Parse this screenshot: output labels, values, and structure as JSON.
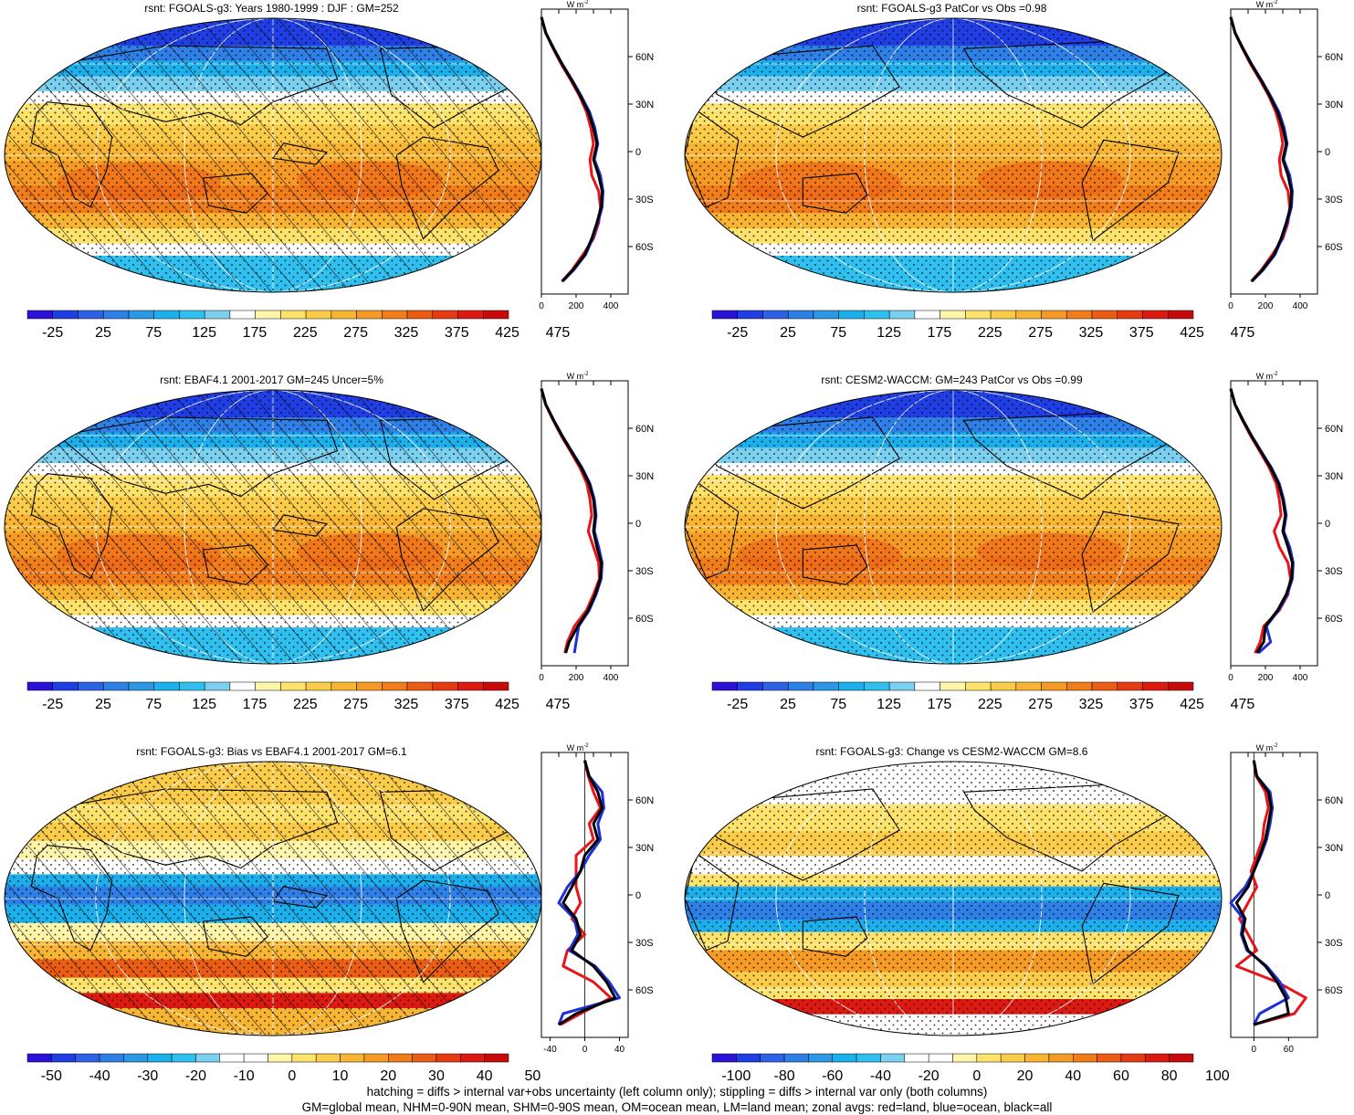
{
  "footer": {
    "line1": "hatching = diffs > internal var+obs uncertainty (left column only); stippling = diffs > internal var only (both columns)",
    "line2": "GM=global mean, NHM=0-90N mean, SHM=0-90S mean, OM=ocean mean, LM=land mean; zonal avgs: red=land, blue=ocean, black=all"
  },
  "colors": {
    "land": "#e8141a",
    "ocean": "#1f2fd8",
    "all": "#000000",
    "palette": [
      "#2a12d6",
      "#1f3ee3",
      "#2d62e6",
      "#2f80e6",
      "#2a98e3",
      "#1bb0ec",
      "#30c0f0",
      "#7cd0ef",
      "#ffffff",
      "#fff5a8",
      "#fde26b",
      "#fbcc4a",
      "#f8b534",
      "#f59a25",
      "#f07d1a",
      "#eb5d14",
      "#e53a12",
      "#dd1a12",
      "#c80a0a"
    ],
    "palette_diff": [
      "#2a12d6",
      "#1f3ee3",
      "#2d62e6",
      "#2f80e6",
      "#2a98e3",
      "#1bb0ec",
      "#30c0f0",
      "#7cd0ef",
      "#ffffff",
      "#ffffff",
      "#fff5a8",
      "#fde26b",
      "#fbcc4a",
      "#f8b534",
      "#f59a25",
      "#f07d1a",
      "#eb5d14",
      "#e53a12",
      "#dd1a12",
      "#c80a0a"
    ]
  },
  "zonal_units": "W m",
  "zonal_units_exp": "-2",
  "lat_ticks": [
    "60N",
    "30N",
    "0",
    "30S",
    "60S"
  ],
  "panels": [
    {
      "id": "p1",
      "title": "rsnt: FGOALS-g3: Years 1980-1999 : DJF : GM=252",
      "kind": "abs",
      "hatch": true,
      "cbar_labels": [
        "-25",
        "25",
        "75",
        "125",
        "175",
        "225",
        "275",
        "325",
        "375",
        "425",
        "475"
      ],
      "zonal_xticks": [
        "0",
        "200",
        "400"
      ],
      "zonal_xrange": [
        0,
        500
      ],
      "zonal": {
        "lat": [
          85,
          75,
          65,
          55,
          45,
          35,
          25,
          15,
          5,
          -5,
          -15,
          -25,
          -35,
          -45,
          -55,
          -65,
          -75,
          -82
        ],
        "all": [
          0,
          25,
          70,
          120,
          175,
          225,
          270,
          300,
          320,
          300,
          330,
          350,
          345,
          320,
          290,
          250,
          180,
          120
        ],
        "ocean": [
          0,
          25,
          72,
          122,
          178,
          230,
          278,
          308,
          325,
          305,
          340,
          355,
          350,
          325,
          295,
          255,
          185,
          122
        ],
        "land": [
          0,
          24,
          68,
          116,
          170,
          220,
          260,
          285,
          300,
          280,
          290,
          330,
          340,
          330,
          300,
          240,
          175,
          118
        ]
      }
    },
    {
      "id": "p2",
      "title": "rsnt: FGOALS-g3 PatCor vs Obs =0.98",
      "kind": "abs",
      "hatch": false,
      "cbar_labels": [
        "-25",
        "25",
        "75",
        "125",
        "175",
        "225",
        "275",
        "325",
        "375",
        "425",
        "475"
      ],
      "zonal_xticks": [
        "0",
        "200",
        "400"
      ],
      "zonal_xrange": [
        0,
        500
      ],
      "zonal": {
        "lat": [
          85,
          75,
          65,
          55,
          45,
          35,
          25,
          15,
          5,
          -5,
          -15,
          -25,
          -35,
          -45,
          -55,
          -65,
          -75,
          -82
        ],
        "all": [
          0,
          25,
          70,
          120,
          175,
          225,
          270,
          300,
          320,
          300,
          330,
          350,
          345,
          320,
          290,
          250,
          180,
          120
        ],
        "ocean": [
          0,
          25,
          72,
          122,
          178,
          230,
          278,
          308,
          325,
          305,
          340,
          355,
          350,
          325,
          295,
          255,
          185,
          122
        ],
        "land": [
          0,
          24,
          68,
          116,
          170,
          220,
          260,
          285,
          300,
          280,
          290,
          330,
          340,
          330,
          300,
          240,
          175,
          118
        ]
      }
    },
    {
      "id": "p3",
      "title": "rsnt: EBAF4.1 2001-2017 GM=245 Uncer=5%",
      "kind": "abs",
      "hatch": true,
      "cbar_labels": [
        "-25",
        "25",
        "75",
        "125",
        "175",
        "225",
        "275",
        "325",
        "375",
        "425",
        "475"
      ],
      "zonal_xticks": [
        "0",
        "200",
        "400"
      ],
      "zonal_xrange": [
        0,
        500
      ],
      "zonal": {
        "lat": [
          85,
          75,
          65,
          55,
          45,
          35,
          25,
          15,
          5,
          -5,
          -15,
          -25,
          -35,
          -45,
          -55,
          -65,
          -75,
          -82
        ],
        "all": [
          0,
          25,
          70,
          120,
          175,
          230,
          275,
          300,
          310,
          300,
          320,
          345,
          340,
          310,
          270,
          210,
          160,
          140
        ],
        "ocean": [
          0,
          25,
          72,
          122,
          178,
          235,
          280,
          305,
          315,
          305,
          330,
          350,
          345,
          315,
          275,
          215,
          200,
          190
        ],
        "land": [
          0,
          24,
          68,
          116,
          170,
          222,
          262,
          280,
          290,
          270,
          300,
          330,
          335,
          300,
          260,
          190,
          150,
          135
        ]
      }
    },
    {
      "id": "p4",
      "title": "rsnt: CESM2-WACCM: GM=243 PatCor vs Obs =0.99",
      "kind": "abs",
      "hatch": false,
      "cbar_labels": [
        "-25",
        "25",
        "75",
        "125",
        "175",
        "225",
        "275",
        "325",
        "375",
        "425",
        "475"
      ],
      "zonal_xticks": [
        "0",
        "200",
        "400"
      ],
      "zonal_xrange": [
        0,
        500
      ],
      "zonal": {
        "lat": [
          85,
          75,
          65,
          55,
          45,
          35,
          25,
          15,
          5,
          -5,
          -15,
          -25,
          -35,
          -45,
          -55,
          -65,
          -75,
          -82
        ],
        "all": [
          0,
          25,
          70,
          120,
          175,
          230,
          275,
          300,
          315,
          300,
          330,
          355,
          350,
          320,
          270,
          200,
          190,
          150
        ],
        "ocean": [
          0,
          25,
          72,
          122,
          178,
          235,
          280,
          305,
          320,
          305,
          340,
          360,
          355,
          325,
          275,
          205,
          230,
          160
        ],
        "land": [
          0,
          24,
          68,
          116,
          170,
          222,
          262,
          280,
          290,
          250,
          280,
          330,
          345,
          330,
          280,
          190,
          170,
          140
        ]
      }
    },
    {
      "id": "p5",
      "title": "rsnt: FGOALS-g3: Bias vs EBAF4.1 2001-2017 GM=6.1",
      "kind": "diff1",
      "hatch": true,
      "cbar_labels": [
        "-50",
        "-40",
        "-30",
        "-20",
        "-10",
        "0",
        "10",
        "20",
        "30",
        "40",
        "50"
      ],
      "zonal_xticks": [
        "-40",
        "0",
        "40"
      ],
      "zonal_xrange": [
        -50,
        50
      ],
      "zonal": {
        "lat": [
          85,
          75,
          65,
          55,
          45,
          35,
          25,
          15,
          5,
          -5,
          -15,
          -25,
          -35,
          -45,
          -55,
          -65,
          -75,
          -82
        ],
        "all": [
          0,
          5,
          15,
          20,
          10,
          15,
          0,
          -5,
          -15,
          -25,
          -10,
          -5,
          -15,
          10,
          25,
          35,
          -10,
          -30
        ],
        "ocean": [
          0,
          5,
          20,
          22,
          15,
          18,
          5,
          -5,
          -20,
          -30,
          -12,
          -8,
          -18,
          12,
          28,
          40,
          -25,
          -30
        ],
        "land": [
          0,
          4,
          10,
          18,
          5,
          10,
          -10,
          -10,
          -10,
          -5,
          -15,
          0,
          -20,
          -25,
          10,
          30,
          -5,
          -28
        ]
      }
    },
    {
      "id": "p6",
      "title": "rsnt: FGOALS-g3: Change vs CESM2-WACCM GM=8.6",
      "kind": "diff2",
      "hatch": false,
      "cbar_labels": [
        "-100",
        "-80",
        "-60",
        "-40",
        "-20",
        "0",
        "20",
        "40",
        "60",
        "80",
        "100"
      ],
      "zonal_xticks": [
        "0",
        "60"
      ],
      "zonal_xrange": [
        -40,
        110
      ],
      "zonal": {
        "lat": [
          85,
          75,
          65,
          55,
          45,
          35,
          25,
          15,
          5,
          -5,
          -15,
          -25,
          -35,
          -45,
          -55,
          -65,
          -75,
          -82
        ],
        "all": [
          0,
          5,
          25,
          30,
          25,
          20,
          10,
          0,
          -10,
          -30,
          -15,
          -20,
          -10,
          20,
          40,
          55,
          60,
          0
        ],
        "ocean": [
          0,
          5,
          28,
          32,
          28,
          22,
          12,
          0,
          -15,
          -40,
          -18,
          -22,
          -12,
          22,
          45,
          60,
          10,
          0
        ],
        "land": [
          0,
          4,
          20,
          25,
          18,
          15,
          5,
          -5,
          5,
          -10,
          -25,
          -10,
          5,
          -30,
          40,
          90,
          70,
          0
        ]
      }
    }
  ]
}
